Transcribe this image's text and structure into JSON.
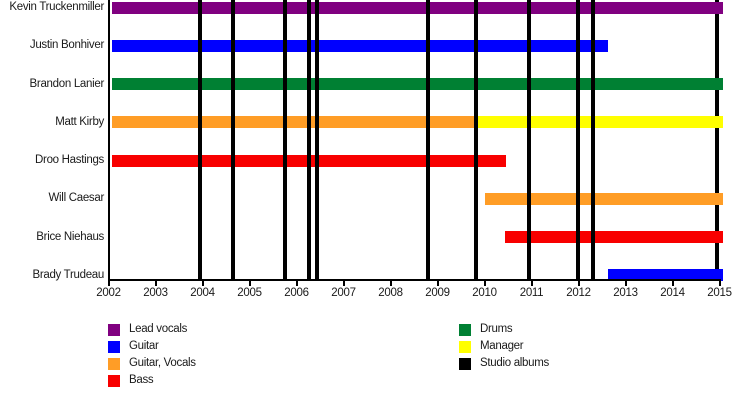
{
  "chart_data": {
    "type": "timeline",
    "description": "Band members timeline (gantt-style) with studio album release markers",
    "x_range": [
      2002,
      2015.1
    ],
    "x_ticks": [
      2002,
      2003,
      2004,
      2005,
      2006,
      2007,
      2008,
      2009,
      2010,
      2011,
      2012,
      2013,
      2014,
      2015
    ],
    "grid": false,
    "legend_position": "bottom",
    "rows": [
      {
        "name": "Kevin Truckenmiller",
        "segments": [
          {
            "role": "Lead vocals",
            "start": 2002.07,
            "end": 2015.07
          }
        ]
      },
      {
        "name": "Justin Bonhiver",
        "segments": [
          {
            "role": "Guitar",
            "start": 2002.07,
            "end": 2012.62
          }
        ]
      },
      {
        "name": "Brandon Lanier",
        "segments": [
          {
            "role": "Drums",
            "start": 2002.07,
            "end": 2015.07
          }
        ]
      },
      {
        "name": "Matt Kirby",
        "segments": [
          {
            "role": "Guitar, Vocals",
            "start": 2002.07,
            "end": 2009.81
          },
          {
            "role": "Manager",
            "start": 2009.81,
            "end": 2015.07
          }
        ]
      },
      {
        "name": "Droo Hastings",
        "segments": [
          {
            "role": "Bass",
            "start": 2002.07,
            "end": 2010.45
          }
        ]
      },
      {
        "name": "Will Caesar",
        "segments": [
          {
            "role": "Guitar, Vocals",
            "start": 2010.01,
            "end": 2015.07
          }
        ]
      },
      {
        "name": "Brice Niehaus",
        "segments": [
          {
            "role": "Bass",
            "start": 2010.43,
            "end": 2015.07
          }
        ]
      },
      {
        "name": "Brady Trudeau",
        "segments": [
          {
            "role": "Guitar",
            "start": 2012.62,
            "end": 2015.07
          }
        ]
      }
    ],
    "studio_album_lines": {
      "label": "Studio albums",
      "years": [
        2003.95,
        2004.64,
        2005.76,
        2006.26,
        2006.43,
        2008.8,
        2009.81,
        2010.95,
        2011.99,
        2012.31,
        2014.94
      ],
      "behind_bars_years": [
        2014.94
      ]
    },
    "role_colors": {
      "Lead vocals": "#800080",
      "Guitar": "#0000FF",
      "Guitar, Vocals": "#FF9D26",
      "Bass": "#F80000",
      "Drums": "#008033",
      "Manager": "#FFFF00",
      "Studio albums": "#000000"
    },
    "legend_columns": [
      [
        {
          "label": "Lead vocals",
          "color": "#800080"
        },
        {
          "label": "Guitar",
          "color": "#0000FF"
        },
        {
          "label": "Guitar, Vocals",
          "color": "#FF9D26"
        },
        {
          "label": "Bass",
          "color": "#F80000"
        }
      ],
      [
        {
          "label": "Drums",
          "color": "#008033"
        },
        {
          "label": "Manager",
          "color": "#FFFF00"
        },
        {
          "label": "Studio albums",
          "color": "#000000"
        }
      ]
    ]
  },
  "layout_colors": {
    "background": "#FFFFFF",
    "axis": "#000000",
    "text": "#1A1A1A"
  }
}
